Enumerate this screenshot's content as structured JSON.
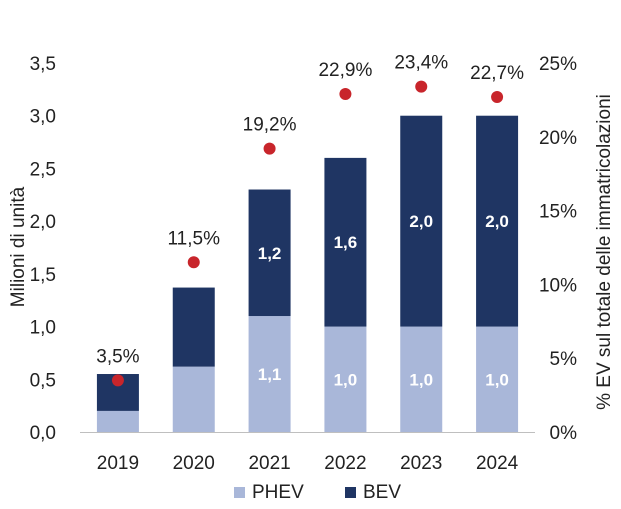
{
  "chart_data": {
    "type": "bar",
    "stacked": true,
    "categories": [
      "2019",
      "2020",
      "2021",
      "2022",
      "2023",
      "2024"
    ],
    "series": [
      {
        "name": "PHEV",
        "color": "#a9b7d9",
        "values": [
          0.2,
          0.62,
          1.1,
          1.0,
          1.0,
          1.0
        ],
        "labels": [
          "",
          "",
          "1,1",
          "1,0",
          "1,0",
          "1,0"
        ]
      },
      {
        "name": "BEV",
        "color": "#1f3563",
        "values": [
          0.35,
          0.75,
          1.2,
          1.6,
          2.0,
          2.0
        ],
        "labels": [
          "",
          "",
          "1,2",
          "1,6",
          "2,0",
          "2,0"
        ]
      }
    ],
    "ev_share": {
      "color": "#c8252b",
      "values": [
        3.5,
        11.5,
        19.2,
        22.9,
        23.4,
        22.7
      ],
      "labels": [
        "3,5%",
        "11,5%",
        "19,2%",
        "22,9%",
        "23,4%",
        "22,7%"
      ]
    },
    "ylabel": "Milioni di unità",
    "y2label": "% EV sul totale delle immatricolazioni",
    "ylim": [
      0,
      3.5
    ],
    "y2lim": [
      0,
      25
    ],
    "yticks": [
      0,
      0.5,
      1,
      1.5,
      2,
      2.5,
      3,
      3.5
    ],
    "yticklabels": [
      "0,0",
      "0,5",
      "1,0",
      "1,5",
      "2,0",
      "2,5",
      "3,0",
      "3,5"
    ],
    "y2ticks": [
      0,
      5,
      10,
      15,
      20,
      25
    ],
    "y2ticklabels": [
      "0%",
      "5%",
      "10%",
      "15%",
      "20%",
      "25%"
    ],
    "legend_position": "bottom-center",
    "grid": false
  }
}
